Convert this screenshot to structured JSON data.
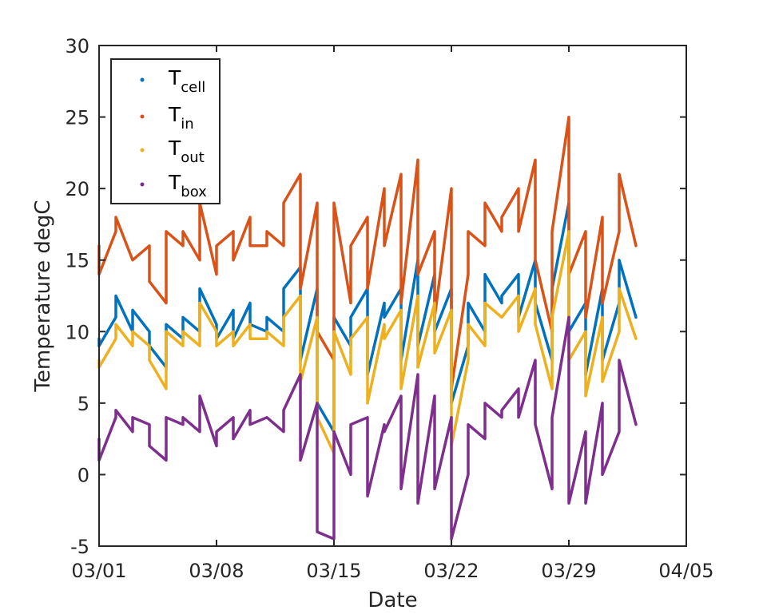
{
  "chart_data": {
    "type": "line",
    "xlabel": "Date",
    "ylabel": "Temperature degC",
    "xlim": [
      "03/01",
      "04/05"
    ],
    "ylim": [
      -5,
      30
    ],
    "x_ticks": [
      "03/01",
      "03/08",
      "03/15",
      "03/22",
      "03/29",
      "04/05"
    ],
    "y_ticks": [
      "-5",
      "0",
      "5",
      "10",
      "15",
      "20",
      "25",
      "30"
    ],
    "grid": false,
    "legend_position": "top-left",
    "x": [
      "03/01",
      "03/01",
      "03/02",
      "03/02",
      "03/03",
      "03/03",
      "03/04",
      "03/04",
      "03/05",
      "03/05",
      "03/06",
      "03/06",
      "03/07",
      "03/07",
      "03/08",
      "03/08",
      "03/09",
      "03/09",
      "03/10",
      "03/10",
      "03/11",
      "03/11",
      "03/12",
      "03/12",
      "03/13",
      "03/13",
      "03/14",
      "03/14",
      "03/15",
      "03/15",
      "03/16",
      "03/16",
      "03/17",
      "03/17",
      "03/18",
      "03/18",
      "03/19",
      "03/19",
      "03/20",
      "03/20",
      "03/21",
      "03/21",
      "03/22",
      "03/22",
      "03/23",
      "03/23",
      "03/24",
      "03/24",
      "03/25",
      "03/25",
      "03/26",
      "03/26",
      "03/27",
      "03/27",
      "03/28",
      "03/28",
      "03/29",
      "03/29",
      "03/30",
      "03/30",
      "03/31",
      "03/31",
      "04/01",
      "04/01",
      "04/02"
    ],
    "series": [
      {
        "name": "cell",
        "legend_main": "T",
        "legend_sub": "cell",
        "color": "#0072BD",
        "values": [
          9.5,
          9,
          11,
          12.5,
          10,
          11.5,
          10,
          9,
          7.5,
          10.5,
          9.5,
          11,
          10,
          13,
          10.5,
          9.5,
          11.5,
          9.5,
          12,
          10.5,
          10,
          11,
          10,
          13,
          14.5,
          8,
          13,
          5,
          3,
          11,
          9,
          11,
          13,
          7,
          12,
          11,
          13,
          8,
          15,
          9,
          14,
          10,
          13,
          5,
          9,
          12,
          10,
          14,
          12,
          12.5,
          14,
          11,
          15,
          12,
          8,
          13,
          19,
          10,
          12,
          7,
          13,
          8,
          12,
          15,
          11
        ]
      },
      {
        "name": "in",
        "legend_main": "T",
        "legend_sub": "in",
        "color": "#D95319",
        "values": [
          16,
          14,
          17,
          18,
          15,
          15,
          16,
          13.5,
          12,
          17,
          16,
          17,
          15,
          19,
          14,
          16,
          17,
          15,
          18,
          16,
          16,
          17,
          16,
          19,
          21,
          13,
          19,
          10,
          8,
          19,
          12,
          16,
          18,
          13,
          20,
          16,
          21,
          12,
          22,
          14,
          17,
          11,
          20,
          6,
          14,
          17,
          16,
          19,
          17,
          18,
          20,
          17,
          22,
          15,
          10,
          17,
          25,
          14,
          17,
          11,
          18,
          12,
          17,
          21,
          16
        ]
      },
      {
        "name": "out",
        "legend_main": "T",
        "legend_sub": "out",
        "color": "#EDB120",
        "values": [
          8,
          7.5,
          9.5,
          10.5,
          9,
          10,
          9,
          8,
          6,
          10,
          9,
          10,
          9,
          12,
          10,
          9,
          10,
          9,
          10.5,
          9.5,
          9.5,
          10,
          9,
          11,
          12.5,
          6.5,
          11,
          4,
          1.5,
          10,
          7,
          9.5,
          11,
          5,
          10.5,
          9.5,
          11.5,
          6,
          12.5,
          7.5,
          12,
          8.5,
          11.5,
          2,
          8,
          10.5,
          9,
          12,
          11,
          11,
          12.5,
          10,
          13,
          10.5,
          6,
          11,
          17,
          8,
          10,
          5.5,
          11,
          6.5,
          10,
          13,
          9.5
        ]
      },
      {
        "name": "box",
        "legend_main": "T",
        "legend_sub": "box",
        "color": "#7E2F8E",
        "values": [
          2.5,
          1,
          4,
          4.5,
          3,
          4,
          3.5,
          2,
          1,
          4,
          3.5,
          4,
          3,
          5.5,
          2,
          3,
          4,
          2.5,
          4.5,
          3.5,
          4,
          4,
          3,
          4.5,
          7,
          1,
          5,
          -4,
          -4.5,
          3,
          0,
          3.5,
          4,
          -1.5,
          3.5,
          3,
          5.5,
          -1,
          7,
          -2,
          5.5,
          -1,
          4,
          -4.5,
          0,
          3.5,
          2.5,
          5,
          4,
          4.5,
          6,
          4,
          8,
          3.5,
          -1,
          4,
          11,
          -2,
          3,
          -2,
          5,
          0,
          3,
          8,
          3.5
        ]
      }
    ]
  }
}
